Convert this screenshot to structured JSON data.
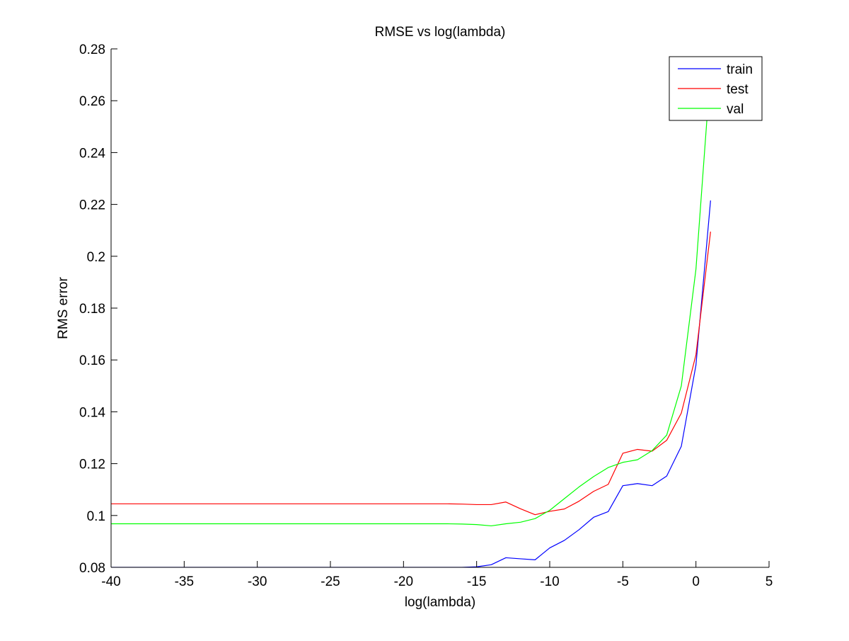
{
  "chart_data": {
    "type": "line",
    "title": "RMSE vs log(lambda)",
    "xlabel": "log(lambda)",
    "ylabel": "RMS error",
    "xlim": [
      -40,
      5
    ],
    "ylim": [
      0.08,
      0.28
    ],
    "xticks": [
      -40,
      -35,
      -30,
      -25,
      -20,
      -15,
      -10,
      -5,
      0,
      5
    ],
    "xtick_labels": [
      "-40",
      "-35",
      "-30",
      "-25",
      "-20",
      "-15",
      "-10",
      "-5",
      "0",
      "5"
    ],
    "yticks": [
      0.08,
      0.1,
      0.12,
      0.14,
      0.16,
      0.18,
      0.2,
      0.22,
      0.24,
      0.26,
      0.28
    ],
    "ytick_labels": [
      "0.08",
      "0.1",
      "0.12",
      "0.14",
      "0.16",
      "0.18",
      "0.2",
      "0.22",
      "0.24",
      "0.26",
      "0.28"
    ],
    "grid": false,
    "legend_position": "top-right",
    "x": [
      -40,
      -39,
      -38,
      -37,
      -36,
      -35,
      -34,
      -33,
      -32,
      -31,
      -30,
      -29,
      -28,
      -27,
      -26,
      -25,
      -24,
      -23,
      -22,
      -21,
      -20,
      -19,
      -18,
      -17,
      -16,
      -15,
      -14,
      -13,
      -12,
      -11,
      -10,
      -9,
      -8,
      -7,
      -6,
      -5,
      -4,
      -3,
      -2,
      -1,
      0,
      1
    ],
    "series": [
      {
        "name": "train",
        "color": "#0000ff",
        "values": [
          0.08,
          0.08,
          0.08,
          0.08,
          0.08,
          0.08,
          0.08,
          0.08,
          0.08,
          0.08,
          0.08,
          0.08,
          0.08,
          0.08,
          0.08,
          0.08,
          0.08,
          0.08,
          0.08,
          0.08,
          0.08,
          0.08,
          0.08,
          0.08,
          0.08,
          0.0802,
          0.081,
          0.0837,
          0.0833,
          0.0829,
          0.0875,
          0.0904,
          0.0945,
          0.0993,
          0.1015,
          0.1115,
          0.1123,
          0.1115,
          0.1152,
          0.1267,
          0.158,
          0.2215
        ]
      },
      {
        "name": "test",
        "color": "#ff0000",
        "values": [
          0.1045,
          0.1045,
          0.1045,
          0.1045,
          0.1045,
          0.1045,
          0.1045,
          0.1045,
          0.1045,
          0.1045,
          0.1045,
          0.1045,
          0.1045,
          0.1045,
          0.1045,
          0.1045,
          0.1045,
          0.1045,
          0.1045,
          0.1045,
          0.1045,
          0.1045,
          0.1045,
          0.1045,
          0.1044,
          0.1042,
          0.1042,
          0.1052,
          0.1026,
          0.1003,
          0.1016,
          0.1025,
          0.1055,
          0.1093,
          0.112,
          0.124,
          0.1255,
          0.1248,
          0.129,
          0.1395,
          0.162,
          0.2095
        ]
      },
      {
        "name": "val",
        "color": "#00ff00",
        "values": [
          0.0968,
          0.0968,
          0.0968,
          0.0968,
          0.0968,
          0.0968,
          0.0968,
          0.0968,
          0.0968,
          0.0968,
          0.0968,
          0.0968,
          0.0968,
          0.0968,
          0.0968,
          0.0968,
          0.0968,
          0.0968,
          0.0968,
          0.0968,
          0.0968,
          0.0968,
          0.0968,
          0.0968,
          0.0967,
          0.0965,
          0.096,
          0.0968,
          0.0974,
          0.0988,
          0.102,
          0.1065,
          0.111,
          0.115,
          0.1185,
          0.1205,
          0.1215,
          0.125,
          0.131,
          0.15,
          0.195,
          0.272
        ]
      }
    ]
  }
}
